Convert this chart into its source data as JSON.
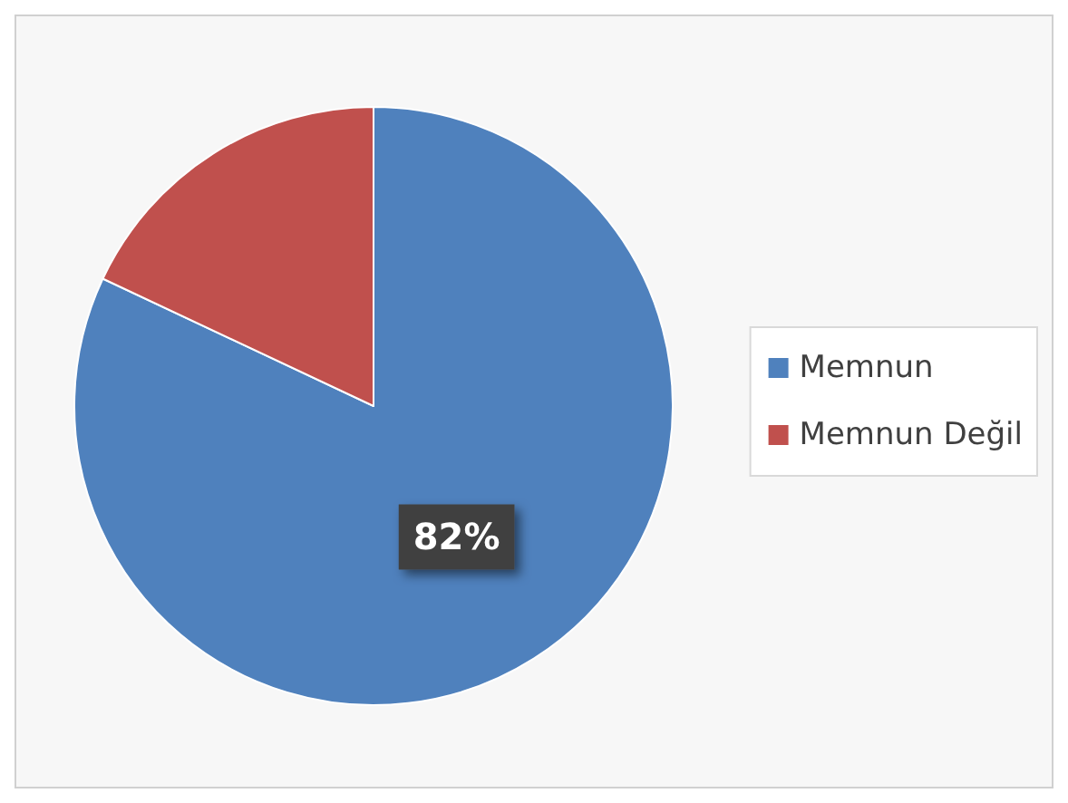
{
  "chart_data": {
    "type": "pie",
    "categories": [
      "Memnun",
      "Memnun Değil"
    ],
    "values": [
      82,
      18
    ],
    "colors": [
      "#4f81bd",
      "#c0504d"
    ],
    "value_labels": [
      "82%",
      null
    ],
    "legend": "right"
  }
}
